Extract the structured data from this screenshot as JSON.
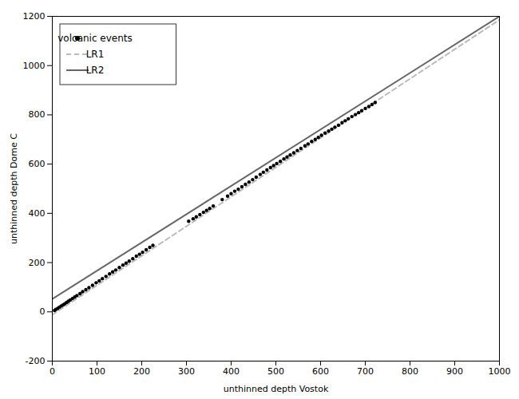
{
  "chart_data": {
    "type": "scatter",
    "xlabel": "unthinned depth Vostok",
    "ylabel": "unthinned depth Dome C",
    "xlim": [
      0,
      1000
    ],
    "ylim": [
      -200,
      1200
    ],
    "xticks": [
      0,
      100,
      200,
      300,
      400,
      500,
      600,
      700,
      800,
      900,
      1000
    ],
    "yticks": [
      -200,
      0,
      200,
      400,
      600,
      800,
      1000,
      1200
    ],
    "grid": false,
    "legend": "upper left",
    "series": [
      {
        "name": "volcanic events",
        "type": "scatter",
        "color": "black",
        "marker": "circle",
        "x": [
          5,
          8,
          12,
          16,
          20,
          24,
          28,
          32,
          36,
          40,
          45,
          50,
          55,
          62,
          68,
          75,
          82,
          90,
          98,
          105,
          112,
          120,
          128,
          135,
          142,
          150,
          158,
          165,
          172,
          180,
          188,
          195,
          202,
          210,
          218,
          225,
          305,
          315,
          322,
          330,
          338,
          345,
          352,
          360,
          380,
          392,
          400,
          408,
          416,
          424,
          432,
          440,
          448,
          456,
          465,
          472,
          480,
          488,
          495,
          502,
          510,
          518,
          525,
          532,
          540,
          548,
          556,
          565,
          572,
          580,
          588,
          595,
          602,
          610,
          618,
          625,
          632,
          640,
          648,
          655,
          662,
          670,
          678,
          685,
          692,
          700,
          708,
          715,
          722
        ],
        "values": [
          6,
          10,
          14,
          19,
          24,
          28,
          33,
          38,
          43,
          48,
          54,
          60,
          66,
          74,
          82,
          90,
          98,
          108,
          118,
          126,
          135,
          144,
          154,
          162,
          170,
          180,
          190,
          198,
          206,
          216,
          226,
          234,
          242,
          252,
          262,
          270,
          368,
          378,
          386,
          395,
          404,
          412,
          420,
          430,
          456,
          470,
          480,
          490,
          498,
          508,
          518,
          527,
          537,
          547,
          558,
          567,
          576,
          586,
          594,
          602,
          611,
          621,
          629,
          637,
          646,
          655,
          664,
          674,
          682,
          692,
          700,
          708,
          717,
          726,
          734,
          742,
          750,
          758,
          768,
          776,
          784,
          793,
          801,
          809,
          817,
          826,
          834,
          842,
          850
        ]
      },
      {
        "name": "LR1",
        "type": "line",
        "color": "#bbbbbb",
        "line_style": "dashed",
        "x": [
          0,
          1000
        ],
        "values": [
          -12,
          1186
        ]
      },
      {
        "name": "LR2",
        "type": "line",
        "color": "#666666",
        "line_style": "solid",
        "x": [
          0,
          1000
        ],
        "values": [
          52,
          1200
        ]
      }
    ]
  }
}
